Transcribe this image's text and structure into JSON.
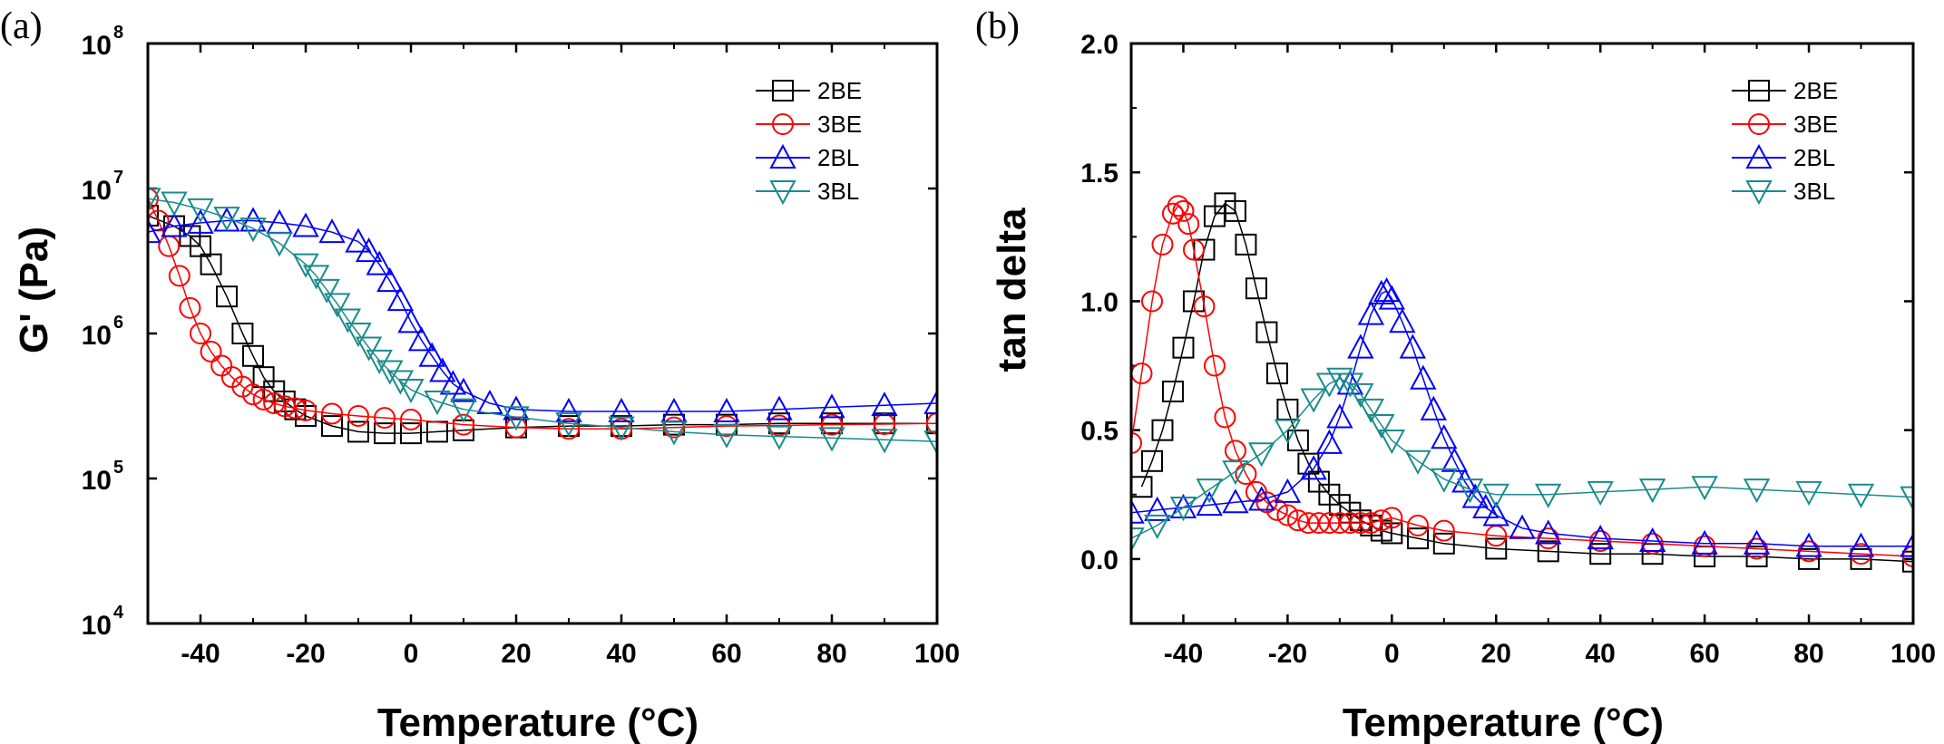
{
  "chart_data": [
    {
      "panel": "(a)",
      "type": "scatter",
      "xlabel": "Temperature (°C)",
      "ylabel": "G' (Pa)",
      "yscale": "log",
      "xlim": [
        -50,
        100
      ],
      "ylim": [
        10000,
        100000000
      ],
      "xticks": [
        "-40",
        "-20",
        "0",
        "20",
        "40",
        "60",
        "80",
        "100"
      ],
      "xtick_values": [
        -40,
        -20,
        0,
        20,
        40,
        60,
        80,
        100
      ],
      "yticks": [
        {
          "value": 10000,
          "base": "10",
          "exp": "4"
        },
        {
          "value": 100000,
          "base": "10",
          "exp": "5"
        },
        {
          "value": 1000000,
          "base": "10",
          "exp": "6"
        },
        {
          "value": 10000000,
          "base": "10",
          "exp": "7"
        },
        {
          "value": 100000000,
          "base": "10",
          "exp": "8"
        }
      ],
      "legend_position": "top-right",
      "series": [
        {
          "name": "2BE",
          "color": "#000000",
          "marker": "square",
          "x": [
            -50,
            -45,
            -42,
            -40,
            -38,
            -35,
            -32,
            -30,
            -28,
            -26,
            -24,
            -22,
            -20,
            -15,
            -10,
            -5,
            0,
            5,
            10,
            20,
            30,
            40,
            50,
            60,
            70,
            80,
            90,
            100
          ],
          "y": [
            6500000,
            5500000,
            4700000,
            4000000,
            3000000,
            1800000,
            1000000,
            700000,
            500000,
            400000,
            340000,
            300000,
            270000,
            230000,
            210000,
            205000,
            205000,
            210000,
            215000,
            225000,
            230000,
            230000,
            235000,
            235000,
            240000,
            240000,
            240000,
            240000
          ]
        },
        {
          "name": "3BE",
          "color": "#ff0000",
          "marker": "circle",
          "x": [
            -50,
            -48,
            -46,
            -44,
            -42,
            -40,
            -38,
            -36,
            -34,
            -32,
            -30,
            -28,
            -26,
            -24,
            -22,
            -20,
            -15,
            -10,
            -5,
            0,
            10,
            20,
            30,
            40,
            50,
            60,
            70,
            80,
            90,
            100
          ],
          "y": [
            8500000,
            6000000,
            4000000,
            2500000,
            1500000,
            1000000,
            750000,
            600000,
            500000,
            430000,
            380000,
            350000,
            330000,
            315000,
            305000,
            295000,
            280000,
            270000,
            262000,
            255000,
            235000,
            225000,
            220000,
            220000,
            225000,
            230000,
            232000,
            235000,
            237000,
            240000
          ]
        },
        {
          "name": "2BL",
          "color": "#0000ff",
          "marker": "triangle-up",
          "x": [
            -50,
            -45,
            -40,
            -35,
            -30,
            -25,
            -20,
            -15,
            -10,
            -8,
            -6,
            -4,
            -2,
            0,
            2,
            4,
            6,
            8,
            10,
            15,
            20,
            30,
            40,
            50,
            60,
            70,
            80,
            90,
            100
          ],
          "y": [
            5000000,
            5500000,
            5800000,
            6000000,
            6000000,
            5800000,
            5500000,
            5000000,
            4300000,
            3700000,
            3000000,
            2300000,
            1700000,
            1200000,
            900000,
            700000,
            550000,
            450000,
            400000,
            330000,
            300000,
            290000,
            290000,
            290000,
            290000,
            300000,
            310000,
            320000,
            330000
          ]
        },
        {
          "name": "3BL",
          "color": "#1a8b8b",
          "marker": "triangle-down",
          "x": [
            -50,
            -45,
            -40,
            -35,
            -30,
            -25,
            -20,
            -18,
            -16,
            -14,
            -12,
            -10,
            -8,
            -6,
            -4,
            -2,
            0,
            5,
            10,
            20,
            30,
            40,
            50,
            60,
            70,
            80,
            90,
            100
          ],
          "y": [
            8500000,
            8000000,
            7200000,
            6300000,
            5300000,
            4200000,
            3000000,
            2500000,
            2000000,
            1600000,
            1250000,
            1000000,
            800000,
            650000,
            550000,
            470000,
            410000,
            340000,
            300000,
            265000,
            240000,
            225000,
            210000,
            200000,
            195000,
            190000,
            185000,
            180000
          ]
        }
      ]
    },
    {
      "panel": "(b)",
      "type": "scatter",
      "xlabel": "Temperature (°C)",
      "ylabel": "tan delta",
      "yscale": "linear",
      "xlim": [
        -50,
        100
      ],
      "ylim": [
        -0.25,
        2.0
      ],
      "xticks": [
        "-40",
        "-20",
        "0",
        "20",
        "40",
        "60",
        "80",
        "100"
      ],
      "xtick_values": [
        -40,
        -20,
        0,
        20,
        40,
        60,
        80,
        100
      ],
      "yticks": [
        "0.0",
        "0.5",
        "1.0",
        "1.5",
        "2.0"
      ],
      "ytick_values": [
        0,
        0.5,
        1.0,
        1.5,
        2.0
      ],
      "legend_position": "top-right",
      "series": [
        {
          "name": "2BE",
          "color": "#000000",
          "marker": "square",
          "x": [
            -48,
            -46,
            -44,
            -42,
            -40,
            -38,
            -36,
            -34,
            -32,
            -30,
            -28,
            -26,
            -24,
            -22,
            -20,
            -18,
            -16,
            -14,
            -12,
            -10,
            -8,
            -6,
            -4,
            -2,
            0,
            5,
            10,
            20,
            30,
            40,
            50,
            60,
            70,
            80,
            90,
            100
          ],
          "y": [
            0.28,
            0.38,
            0.5,
            0.65,
            0.82,
            1.0,
            1.2,
            1.33,
            1.38,
            1.35,
            1.22,
            1.05,
            0.88,
            0.72,
            0.58,
            0.46,
            0.37,
            0.3,
            0.25,
            0.21,
            0.18,
            0.15,
            0.13,
            0.11,
            0.1,
            0.08,
            0.06,
            0.04,
            0.03,
            0.02,
            0.02,
            0.01,
            0.01,
            0.0,
            0.0,
            -0.01
          ]
        },
        {
          "name": "3BE",
          "color": "#ff0000",
          "marker": "circle",
          "x": [
            -50,
            -48,
            -46,
            -44,
            -42,
            -41,
            -40,
            -39,
            -38,
            -36,
            -34,
            -32,
            -30,
            -28,
            -26,
            -24,
            -22,
            -20,
            -18,
            -16,
            -14,
            -12,
            -10,
            -8,
            -6,
            -4,
            -2,
            0,
            5,
            10,
            20,
            30,
            40,
            50,
            60,
            70,
            80,
            90,
            100
          ],
          "y": [
            0.45,
            0.72,
            1.0,
            1.22,
            1.34,
            1.37,
            1.35,
            1.3,
            1.2,
            0.98,
            0.75,
            0.55,
            0.42,
            0.33,
            0.26,
            0.22,
            0.19,
            0.17,
            0.15,
            0.14,
            0.14,
            0.14,
            0.14,
            0.14,
            0.14,
            0.14,
            0.15,
            0.16,
            0.13,
            0.11,
            0.09,
            0.08,
            0.07,
            0.06,
            0.05,
            0.04,
            0.03,
            0.02,
            0.01
          ]
        },
        {
          "name": "2BL",
          "color": "#0000ff",
          "marker": "triangle-up",
          "x": [
            -50,
            -45,
            -40,
            -35,
            -30,
            -25,
            -20,
            -15,
            -12,
            -10,
            -8,
            -6,
            -4,
            -2,
            -1,
            0,
            2,
            4,
            6,
            8,
            10,
            12,
            14,
            16,
            18,
            20,
            25,
            30,
            40,
            50,
            60,
            70,
            80,
            90,
            100
          ],
          "y": [
            0.18,
            0.19,
            0.2,
            0.21,
            0.22,
            0.23,
            0.26,
            0.35,
            0.45,
            0.55,
            0.68,
            0.82,
            0.95,
            1.03,
            1.04,
            1.01,
            0.92,
            0.82,
            0.7,
            0.58,
            0.47,
            0.38,
            0.3,
            0.24,
            0.2,
            0.17,
            0.12,
            0.1,
            0.08,
            0.07,
            0.06,
            0.06,
            0.05,
            0.05,
            0.05
          ]
        },
        {
          "name": "3BL",
          "color": "#1a8b8b",
          "marker": "triangle-down",
          "x": [
            -50,
            -45,
            -40,
            -35,
            -30,
            -25,
            -20,
            -15,
            -12,
            -10,
            -8,
            -6,
            -4,
            -2,
            0,
            5,
            10,
            15,
            20,
            30,
            40,
            50,
            60,
            70,
            80,
            90,
            100
          ],
          "y": [
            0.08,
            0.13,
            0.2,
            0.27,
            0.34,
            0.41,
            0.5,
            0.62,
            0.68,
            0.7,
            0.68,
            0.64,
            0.58,
            0.52,
            0.46,
            0.38,
            0.31,
            0.27,
            0.25,
            0.25,
            0.26,
            0.27,
            0.28,
            0.27,
            0.26,
            0.25,
            0.24
          ]
        }
      ]
    }
  ]
}
